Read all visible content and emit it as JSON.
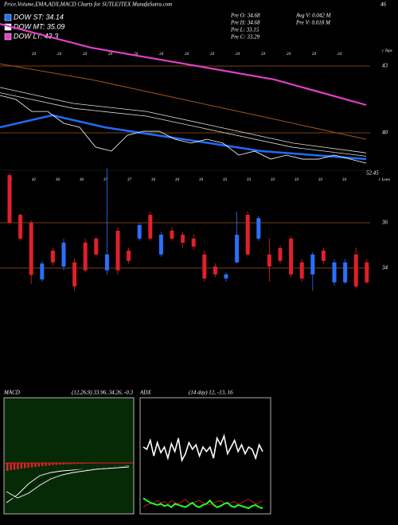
{
  "header": {
    "title": "Price,Volume,EMA,ADX,MACD Charts for SUTLEJTEX MunafaSutra.com",
    "corner": "46",
    "top_tag": "c Tops",
    "low_tag": "52.45",
    "low_tag2": "c Lows"
  },
  "legend": [
    {
      "label": "DOW ST: 34.14",
      "color": "#1e6cff"
    },
    {
      "label": "DOW MT: 35.09",
      "color": "#ffffff"
    },
    {
      "label": "DOW LT: 43.3",
      "color": "#e040c8"
    }
  ],
  "stats": [
    "Pre O: 34.68",
    "Pre H: 34.68",
    "Pre L: 33.15",
    "Pre C: 33.29",
    "Avg V: 0.042 M",
    "Pre V: 0.018 M"
  ],
  "upper_axis": [
    {
      "value": 43,
      "label": "43"
    },
    {
      "value": 40,
      "label": "40"
    }
  ],
  "lower_axis": [
    {
      "value": 36,
      "label": "36"
    },
    {
      "value": 34,
      "label": "34"
    }
  ],
  "upper_dates": [
    "24",
    "24",
    "24",
    "24",
    "24",
    "24",
    "24",
    "24",
    "24",
    "24",
    "24",
    "24",
    "24"
  ],
  "lower_dates": [
    "43",
    "42",
    "36",
    "36",
    "37",
    "37",
    "34",
    "34",
    "34",
    "33",
    "33",
    "33",
    "33",
    "33",
    "34"
  ],
  "lt_line": [
    44.89,
    43.82,
    43.11,
    42.39,
    41.25
  ],
  "orange_line": [
    43.1,
    42.39,
    41.5,
    40.61,
    39.71
  ],
  "mt_lines": [
    [
      42.04,
      41.32,
      40.96,
      40.25,
      39.54,
      39.1
    ],
    [
      41.8,
      41.1,
      40.75,
      40.05,
      39.35,
      38.95
    ]
  ],
  "st_line": [
    40.25,
    40.79,
    40.25,
    39.89,
    39.54,
    39.18,
    39.0,
    38.82
  ],
  "price_line": [
    41.68,
    41.5,
    40.96,
    40.96,
    40.43,
    40.25,
    39.36,
    39.18,
    39.89,
    40.07,
    40.07,
    39.71,
    39.54,
    39.71,
    39.54,
    39.0,
    39.18,
    38.82,
    39.0,
    38.82,
    38.82,
    39.0,
    38.82,
    38.64
  ],
  "candles": [
    [
      38.1,
      38.2,
      35.9,
      36.0
    ],
    [
      36.35,
      36.4,
      35.2,
      35.3
    ],
    [
      36.0,
      36.1,
      33.3,
      33.7
    ],
    [
      33.5,
      34.3,
      33.4,
      34.2
    ],
    [
      34.77,
      34.9,
      34.1,
      34.25
    ],
    [
      34.07,
      35.3,
      33.9,
      35.12
    ],
    [
      34.25,
      34.4,
      33.0,
      33.19
    ],
    [
      35.12,
      35.3,
      33.8,
      33.9
    ],
    [
      35.3,
      35.4,
      34.5,
      34.6
    ],
    [
      33.9,
      38.4,
      33.7,
      34.6
    ],
    [
      35.65,
      35.8,
      33.7,
      33.9
    ],
    [
      34.77,
      34.9,
      34.2,
      34.32
    ],
    [
      35.3,
      36.0,
      35.2,
      35.9
    ],
    [
      36.35,
      36.5,
      35.2,
      35.3
    ],
    [
      34.6,
      35.6,
      34.5,
      35.47
    ],
    [
      35.65,
      35.8,
      35.2,
      35.3
    ],
    [
      35.47,
      35.6,
      34.9,
      35.12
    ],
    [
      35.3,
      35.5,
      34.8,
      34.95
    ],
    [
      34.6,
      34.8,
      33.4,
      33.54
    ],
    [
      34.07,
      34.2,
      33.6,
      33.72
    ],
    [
      33.54,
      33.8,
      33.4,
      33.72
    ],
    [
      34.25,
      36.5,
      34.2,
      35.47
    ],
    [
      36.35,
      36.5,
      34.5,
      34.6
    ],
    [
      35.3,
      36.3,
      35.2,
      36.2
    ],
    [
      34.6,
      35.3,
      33.4,
      34.07
    ],
    [
      34.88,
      35.0,
      34.2,
      34.32
    ],
    [
      35.3,
      35.4,
      33.6,
      33.72
    ],
    [
      34.25,
      34.4,
      33.4,
      33.54
    ],
    [
      33.72,
      34.7,
      33.0,
      34.6
    ],
    [
      34.77,
      34.9,
      34.2,
      34.32
    ],
    [
      33.37,
      34.4,
      33.2,
      34.25
    ],
    [
      33.37,
      34.4,
      33.3,
      34.25
    ],
    [
      34.6,
      34.9,
      33.1,
      33.19
    ],
    [
      34.25,
      34.4,
      33.3,
      33.37
    ]
  ],
  "macd": {
    "label": "MACD",
    "params": "(12,26,9) 33.96, 34.26, -0.3",
    "histogram": [
      -1.0,
      -0.9,
      -0.85,
      -0.8,
      -0.72,
      -0.66,
      -0.6,
      -0.55,
      -0.5,
      -0.45,
      -0.4,
      -0.36,
      -0.32,
      -0.28,
      -0.25,
      -0.22,
      -0.2,
      -0.18,
      -0.16,
      -0.14,
      -0.12,
      -0.1,
      -0.09,
      -0.08,
      -0.07,
      -0.06,
      -0.05,
      -0.05,
      -0.04,
      -0.04,
      -0.03,
      -0.03,
      -0.02,
      -0.02,
      -0.02
    ],
    "lines": [
      [
        -5.0,
        -4.0,
        -2.6,
        -1.6,
        -1.2,
        -1.0,
        -0.9,
        -0.8,
        -0.7,
        -0.6,
        -0.5,
        -0.4
      ],
      [
        -4.6,
        -4.2,
        -3.2,
        -2.2,
        -1.6,
        -1.2,
        -1.0,
        -0.8,
        -0.7,
        -0.6,
        -0.5,
        -0.45
      ],
      [
        -3.6,
        -4.4,
        -3.8,
        -2.8,
        -2.0,
        -1.5,
        -1.2,
        -1.0,
        -0.8,
        -0.7,
        -0.6,
        -0.5
      ]
    ]
  },
  "adx": {
    "label": "ADX",
    "params": "(14 day) 12, -13, 16",
    "adx_line": [
      60,
      58,
      66,
      52,
      64,
      55,
      60,
      50,
      63,
      56,
      68,
      48,
      54,
      64,
      58,
      62,
      52,
      60,
      56,
      60,
      50,
      68,
      62,
      70,
      54,
      60,
      66,
      56,
      62,
      54,
      60,
      58,
      50,
      62,
      56
    ],
    "plus_di": [
      14,
      12,
      10,
      9,
      8,
      9,
      7,
      8,
      6,
      9,
      8,
      7,
      6,
      8,
      10,
      7,
      6,
      8,
      9,
      12,
      8,
      6,
      7,
      9,
      10,
      7,
      6,
      8,
      7,
      6,
      5,
      7,
      8,
      6,
      5
    ],
    "minus_di": [
      6,
      8,
      9,
      10,
      12,
      10,
      11,
      9,
      12,
      10,
      9,
      11,
      13,
      10,
      9,
      11,
      12,
      10,
      9,
      8,
      10,
      11,
      12,
      10,
      9,
      10,
      11,
      9,
      10,
      12,
      13,
      11,
      9,
      10,
      12
    ]
  }
}
